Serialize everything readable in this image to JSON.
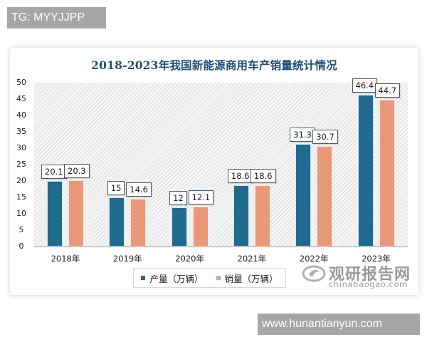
{
  "tags": {
    "top": "TG: MYYJJPP",
    "bottom": "www.hunantianyun.com"
  },
  "colors": {
    "production": "#1f6a8e",
    "sales": "#e9997a",
    "title": "#1f4e79"
  },
  "watermark": {
    "cn": "观研报告网",
    "en": "chinabaogao.com",
    "icon": "chinabaogao-logo-icon"
  },
  "chart_data": {
    "type": "bar",
    "title": "2018-2023年我国新能源商用车产销量统计情况",
    "xlabel": "",
    "ylabel": "",
    "ylim": [
      0,
      50
    ],
    "yticks": [
      "0",
      "5",
      "10",
      "15",
      "20",
      "25",
      "30",
      "35",
      "40",
      "45",
      "50"
    ],
    "grid": false,
    "background_pattern": "diagonal hatch",
    "legend_position": "bottom",
    "categories": [
      "2018年",
      "2019年",
      "2020年",
      "2021年",
      "2022年",
      "2023年"
    ],
    "series": [
      {
        "name": "产量（万辆）",
        "values": [
          20.1,
          15,
          12,
          18.6,
          31.3,
          46.4
        ],
        "labels": [
          "20.1",
          "15",
          "12",
          "18.6",
          "31.3",
          "46.4"
        ]
      },
      {
        "name": "销量（万辆）",
        "values": [
          20.3,
          14.6,
          12.1,
          18.6,
          30.7,
          44.7
        ],
        "labels": [
          "20.3",
          "14.6",
          "12.1",
          "18.6",
          "30.7",
          "44.7"
        ]
      }
    ]
  }
}
